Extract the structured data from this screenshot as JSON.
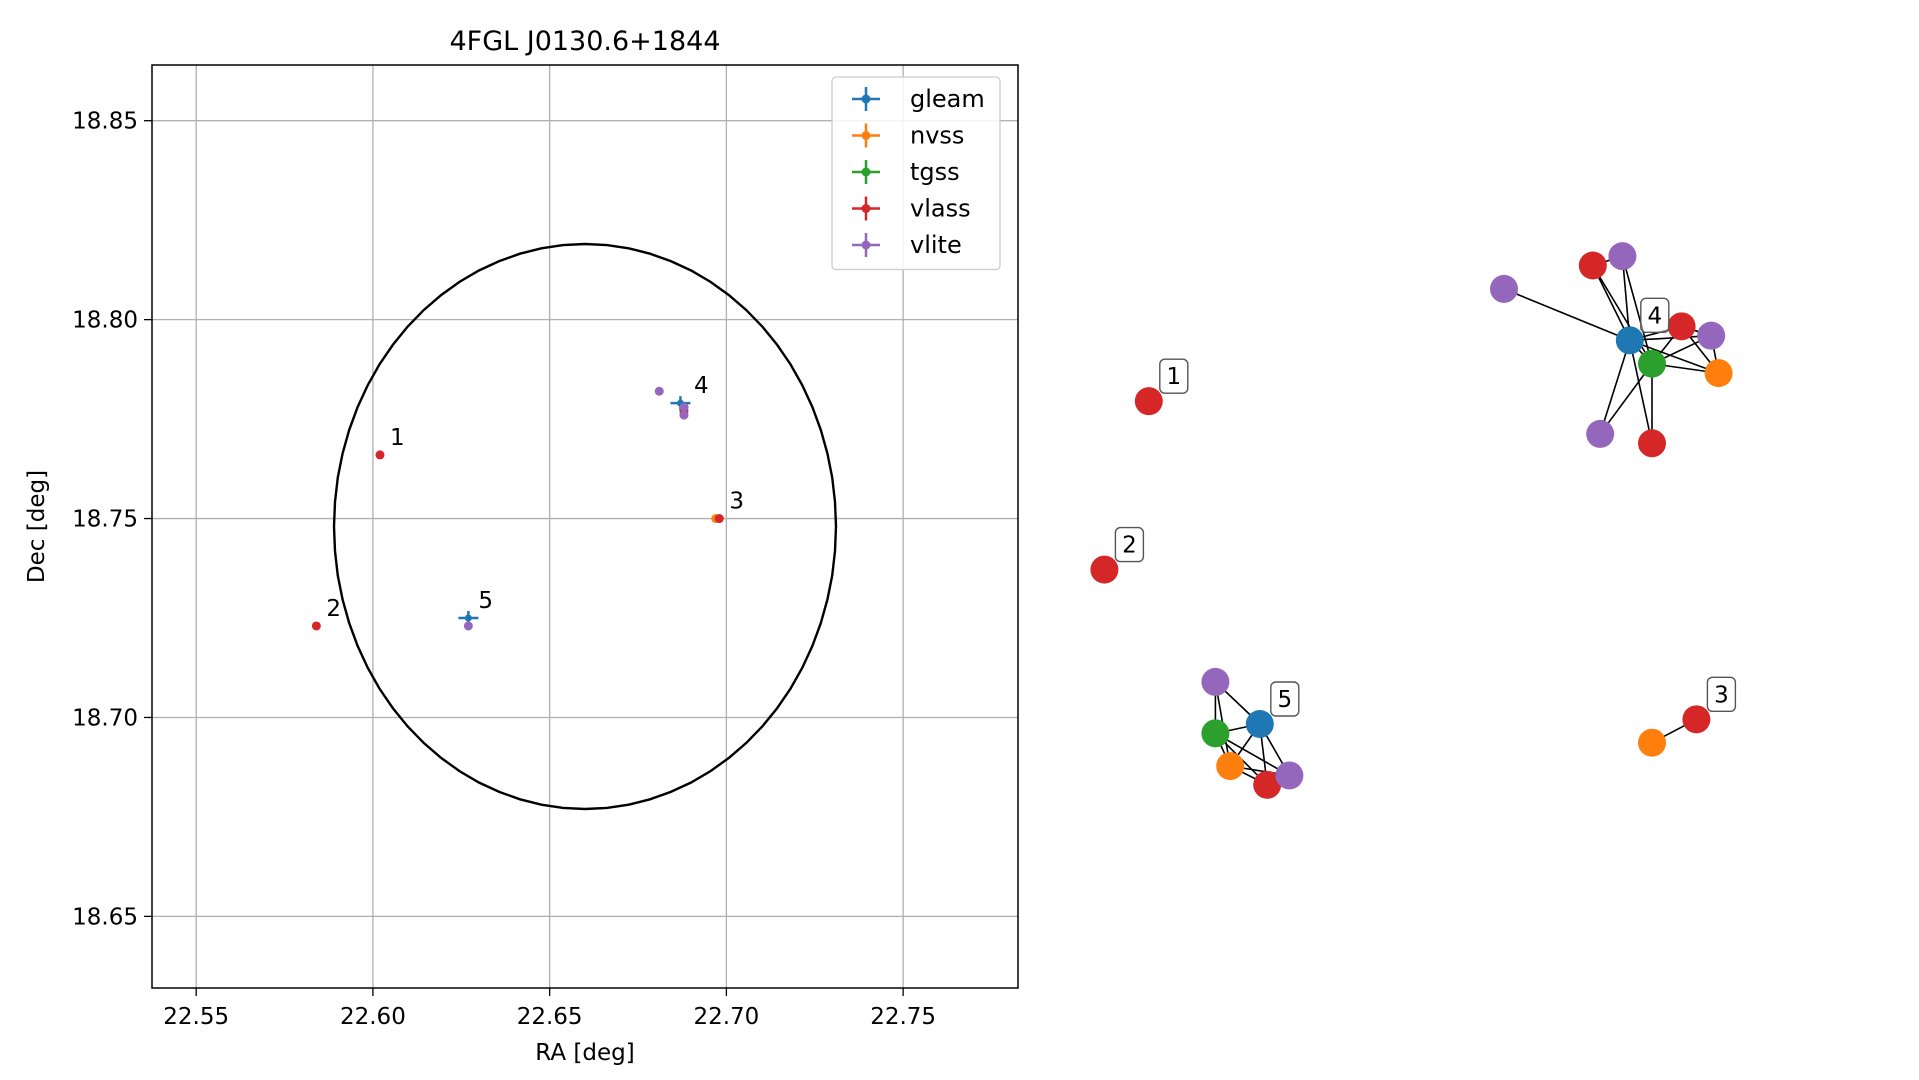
{
  "colors": {
    "gleam": "#1f77b4",
    "nvss": "#ff7f0e",
    "tgss": "#2ca02c",
    "vlass": "#d62728",
    "vlite": "#9467bd",
    "grid": "#b0b0b0",
    "axes": "#000000"
  },
  "chart_data": [
    {
      "type": "scatter",
      "title": "4FGL J0130.6+1844",
      "xlabel": "RA [deg]",
      "ylabel": "Dec [deg]",
      "xlim": [
        22.5375,
        22.7825
      ],
      "ylim": [
        18.632,
        18.864
      ],
      "xticks": [
        22.55,
        22.6,
        22.65,
        22.7,
        22.75
      ],
      "xtick_labels": [
        "22.55",
        "22.60",
        "22.65",
        "22.70",
        "22.75"
      ],
      "yticks": [
        18.65,
        18.7,
        18.75,
        18.8,
        18.85
      ],
      "ytick_labels": [
        "18.65",
        "18.70",
        "18.75",
        "18.80",
        "18.85"
      ],
      "grid": true,
      "legend_position": "top-right",
      "circle": {
        "center_ra": 22.66,
        "center_dec": 18.748,
        "radius_deg": 0.071
      },
      "series": [
        {
          "name": "gleam",
          "points": [
            {
              "x": 22.687,
              "y": 18.779
            },
            {
              "x": 22.627,
              "y": 18.725
            }
          ]
        },
        {
          "name": "nvss",
          "points": [
            {
              "x": 22.697,
              "y": 18.75
            }
          ]
        },
        {
          "name": "tgss",
          "points": [
            {
              "x": 22.688,
              "y": 18.778
            }
          ]
        },
        {
          "name": "vlass",
          "points": [
            {
              "x": 22.602,
              "y": 18.766
            },
            {
              "x": 22.584,
              "y": 18.723
            },
            {
              "x": 22.698,
              "y": 18.75
            },
            {
              "x": 22.688,
              "y": 18.777
            }
          ]
        },
        {
          "name": "vlite",
          "points": [
            {
              "x": 22.681,
              "y": 18.782
            },
            {
              "x": 22.688,
              "y": 18.776
            },
            {
              "x": 22.688,
              "y": 18.778
            },
            {
              "x": 22.627,
              "y": 18.723
            }
          ]
        }
      ],
      "annotations": [
        {
          "text": "1",
          "x": 22.602,
          "y": 18.766
        },
        {
          "text": "2",
          "x": 22.584,
          "y": 18.723
        },
        {
          "text": "3",
          "x": 22.698,
          "y": 18.75
        },
        {
          "text": "4",
          "x": 22.688,
          "y": 18.779
        },
        {
          "text": "5",
          "x": 22.627,
          "y": 18.725
        }
      ]
    },
    {
      "type": "network",
      "axes_visible": false,
      "nodes": [
        {
          "id": "c1",
          "series": "vlass",
          "x": 0.12,
          "y": 0.43,
          "label": "1"
        },
        {
          "id": "c2",
          "series": "vlass",
          "x": 0.06,
          "y": 0.79,
          "label": "2"
        },
        {
          "id": "c3a",
          "series": "vlass",
          "x": 0.72,
          "y": 0.14,
          "label": ""
        },
        {
          "id": "c3b",
          "series": "vlite",
          "x": 0.76,
          "y": 0.12,
          "label": ""
        },
        {
          "id": "c3c",
          "series": "vlite",
          "x": 0.6,
          "y": 0.19,
          "label": ""
        },
        {
          "id": "c3d",
          "series": "gleam",
          "x": 0.77,
          "y": 0.3,
          "label": "4"
        },
        {
          "id": "c3e",
          "series": "vlass",
          "x": 0.84,
          "y": 0.27,
          "label": ""
        },
        {
          "id": "c3f",
          "series": "vlite",
          "x": 0.88,
          "y": 0.29,
          "label": ""
        },
        {
          "id": "c3g",
          "series": "tgss",
          "x": 0.8,
          "y": 0.35,
          "label": ""
        },
        {
          "id": "c3h",
          "series": "nvss",
          "x": 0.89,
          "y": 0.37,
          "label": ""
        },
        {
          "id": "c3i",
          "series": "vlite",
          "x": 0.73,
          "y": 0.5,
          "label": ""
        },
        {
          "id": "c3j",
          "series": "vlass",
          "x": 0.8,
          "y": 0.52,
          "label": ""
        },
        {
          "id": "c5a",
          "series": "vlite",
          "x": 0.21,
          "y": 1.03,
          "label": ""
        },
        {
          "id": "c5b",
          "series": "gleam",
          "x": 0.27,
          "y": 1.12,
          "label": "5"
        },
        {
          "id": "c5c",
          "series": "tgss",
          "x": 0.21,
          "y": 1.14,
          "label": ""
        },
        {
          "id": "c5d",
          "series": "nvss",
          "x": 0.23,
          "y": 1.21,
          "label": ""
        },
        {
          "id": "c5e",
          "series": "vlass",
          "x": 0.28,
          "y": 1.25,
          "label": ""
        },
        {
          "id": "c5f",
          "series": "vlite",
          "x": 0.31,
          "y": 1.23,
          "label": ""
        },
        {
          "id": "c6a",
          "series": "nvss",
          "x": 0.8,
          "y": 1.16,
          "label": ""
        },
        {
          "id": "c6b",
          "series": "vlass",
          "x": 0.86,
          "y": 1.11,
          "label": "3"
        }
      ],
      "edges": [
        [
          "c3c",
          "c3d"
        ],
        [
          "c3a",
          "c3b"
        ],
        [
          "c3a",
          "c3d"
        ],
        [
          "c3a",
          "c3g"
        ],
        [
          "c3b",
          "c3d"
        ],
        [
          "c3b",
          "c3g"
        ],
        [
          "c3d",
          "c3e"
        ],
        [
          "c3d",
          "c3f"
        ],
        [
          "c3d",
          "c3g"
        ],
        [
          "c3d",
          "c3h"
        ],
        [
          "c3d",
          "c3i"
        ],
        [
          "c3d",
          "c3j"
        ],
        [
          "c3e",
          "c3g"
        ],
        [
          "c3e",
          "c3f"
        ],
        [
          "c3f",
          "c3g"
        ],
        [
          "c3f",
          "c3h"
        ],
        [
          "c3g",
          "c3h"
        ],
        [
          "c3g",
          "c3i"
        ],
        [
          "c3g",
          "c3j"
        ],
        [
          "c3e",
          "c3h"
        ],
        [
          "c5a",
          "c5b"
        ],
        [
          "c5a",
          "c5c"
        ],
        [
          "c5a",
          "c5d"
        ],
        [
          "c5b",
          "c5c"
        ],
        [
          "c5b",
          "c5d"
        ],
        [
          "c5b",
          "c5e"
        ],
        [
          "c5b",
          "c5f"
        ],
        [
          "c5c",
          "c5d"
        ],
        [
          "c5c",
          "c5e"
        ],
        [
          "c5c",
          "c5f"
        ],
        [
          "c5d",
          "c5e"
        ],
        [
          "c5d",
          "c5f"
        ],
        [
          "c5e",
          "c5f"
        ],
        [
          "c6a",
          "c6b"
        ]
      ]
    }
  ]
}
